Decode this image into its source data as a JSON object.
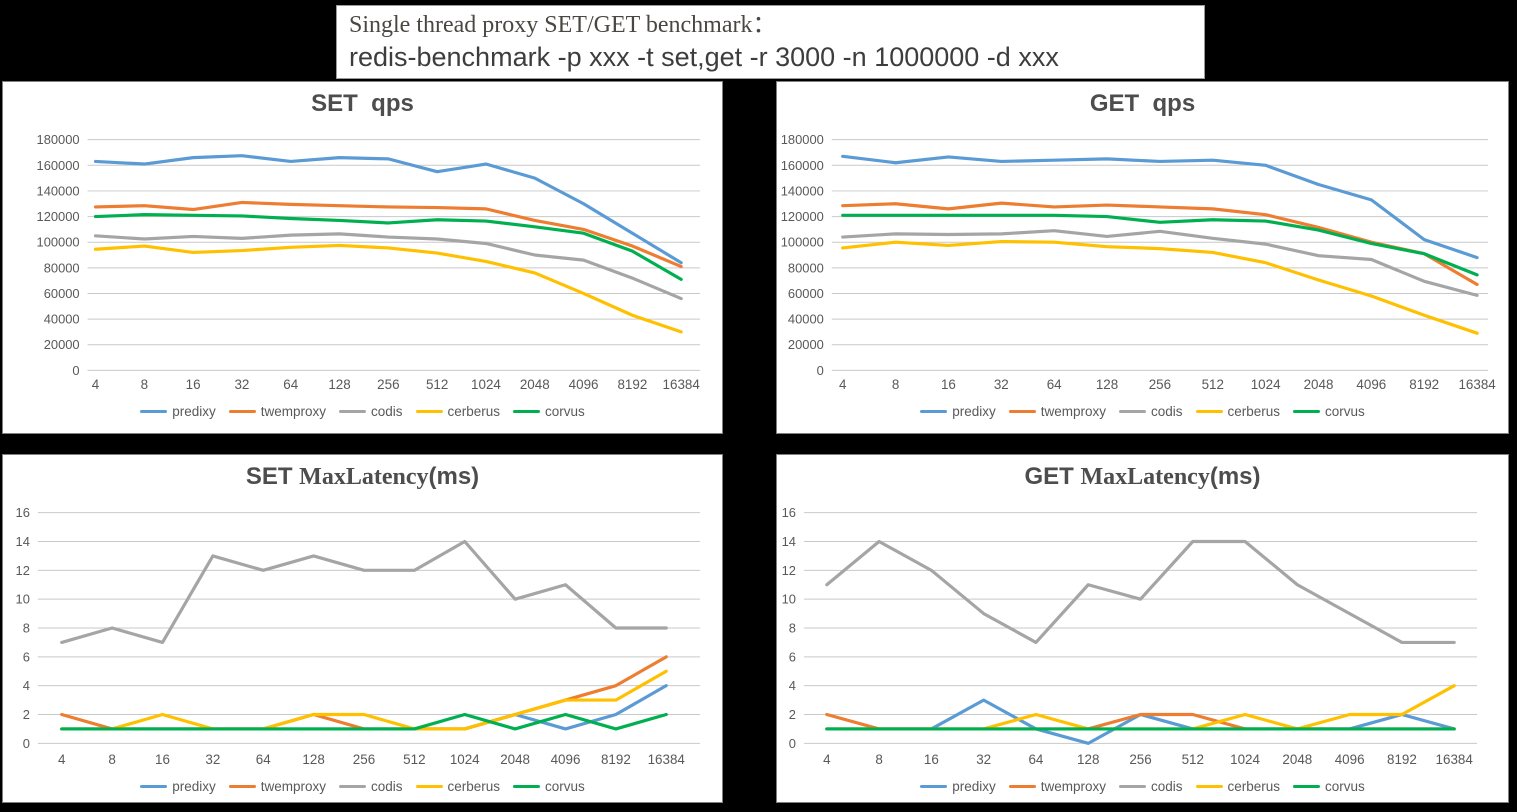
{
  "title_box": {
    "line1": "Single thread proxy SET/GET benchmark：",
    "line2": "redis-benchmark -p xxx -t set,get -r 3000 -n 1000000 -d xxx"
  },
  "colors": {
    "predixy": "#5B9BD5",
    "twemproxy": "#ED7D31",
    "codis": "#A5A5A5",
    "cerberus": "#FFC000",
    "corvus": "#00B050",
    "gridline": "#C9C9C9",
    "tick_text": "#595959"
  },
  "legend_labels": [
    "predixy",
    "twemproxy",
    "codis",
    "cerberus",
    "corvus"
  ],
  "chart_data": [
    {
      "key": "set-qps",
      "type": "line",
      "title_parts": [
        {
          "text": "SET  qps",
          "serif": false
        }
      ],
      "legend_position": "bottom",
      "grid": true,
      "y_axis": {
        "min": 0,
        "max": 180000,
        "step": 20000
      },
      "categories": [
        "4",
        "8",
        "16",
        "32",
        "64",
        "128",
        "256",
        "512",
        "1024",
        "2048",
        "4096",
        "8192",
        "16384"
      ],
      "series": [
        {
          "name": "predixy",
          "values": [
            163000,
            161000,
            166000,
            167500,
            163000,
            166000,
            165000,
            155000,
            161000,
            150000,
            130000,
            107000,
            84000
          ]
        },
        {
          "name": "twemproxy",
          "values": [
            127500,
            128500,
            125500,
            131000,
            129500,
            128500,
            127500,
            127000,
            126000,
            117000,
            110000,
            97000,
            81000
          ]
        },
        {
          "name": "codis",
          "values": [
            105000,
            102500,
            104500,
            103000,
            105500,
            106500,
            104000,
            102500,
            99000,
            90000,
            86000,
            72000,
            56000
          ]
        },
        {
          "name": "cerberus",
          "values": [
            94500,
            97000,
            92000,
            93500,
            96000,
            97500,
            95500,
            91500,
            85000,
            76000,
            60000,
            43000,
            30000
          ]
        },
        {
          "name": "corvus",
          "values": [
            120000,
            121500,
            121000,
            120500,
            118500,
            117000,
            115000,
            117500,
            116500,
            112000,
            107000,
            93000,
            71000
          ]
        }
      ]
    },
    {
      "key": "get-qps",
      "type": "line",
      "title_parts": [
        {
          "text": "GET  qps",
          "serif": false
        }
      ],
      "legend_position": "bottom",
      "grid": true,
      "y_axis": {
        "min": 0,
        "max": 180000,
        "step": 20000
      },
      "categories": [
        "4",
        "8",
        "16",
        "32",
        "64",
        "128",
        "256",
        "512",
        "1024",
        "2048",
        "4096",
        "8192",
        "16384"
      ],
      "series": [
        {
          "name": "predixy",
          "values": [
            167000,
            162000,
            166500,
            163000,
            164000,
            165000,
            163000,
            164000,
            160000,
            145000,
            133000,
            102000,
            88000
          ]
        },
        {
          "name": "twemproxy",
          "values": [
            128500,
            130000,
            126000,
            130500,
            127500,
            129000,
            127500,
            126000,
            121500,
            111500,
            100000,
            91000,
            67000
          ]
        },
        {
          "name": "codis",
          "values": [
            104000,
            106500,
            106000,
            106500,
            109000,
            104500,
            108500,
            103000,
            98500,
            89500,
            86500,
            69500,
            58500
          ]
        },
        {
          "name": "cerberus",
          "values": [
            95500,
            100000,
            97500,
            100500,
            100000,
            96500,
            95000,
            92000,
            84000,
            70500,
            58000,
            43000,
            29000
          ]
        },
        {
          "name": "corvus",
          "values": [
            121000,
            121000,
            121000,
            121000,
            121000,
            120000,
            115500,
            117500,
            116500,
            109500,
            99000,
            91000,
            74500
          ]
        }
      ]
    },
    {
      "key": "set-maxlatency",
      "type": "line",
      "title_parts": [
        {
          "text": "SET ",
          "serif": false
        },
        {
          "text": "MaxLatency",
          "serif": true
        },
        {
          "text": "(ms)",
          "serif": false
        }
      ],
      "legend_position": "bottom",
      "grid": true,
      "y_axis": {
        "min": 0,
        "max": 16,
        "step": 2
      },
      "categories": [
        "4",
        "8",
        "16",
        "32",
        "64",
        "128",
        "256",
        "512",
        "1024",
        "2048",
        "4096",
        "8192",
        "16384"
      ],
      "series": [
        {
          "name": "predixy",
          "values": [
            1,
            1,
            1,
            1,
            1,
            1,
            1,
            1,
            1,
            2,
            1,
            2,
            4
          ]
        },
        {
          "name": "twemproxy",
          "values": [
            2,
            1,
            1,
            1,
            1,
            2,
            1,
            1,
            1,
            2,
            3,
            4,
            6
          ]
        },
        {
          "name": "codis",
          "values": [
            7,
            8,
            7,
            13,
            12,
            13,
            12,
            12,
            14,
            10,
            11,
            8,
            8
          ]
        },
        {
          "name": "cerberus",
          "values": [
            1,
            1,
            2,
            1,
            1,
            2,
            2,
            1,
            1,
            2,
            3,
            3,
            5
          ]
        },
        {
          "name": "corvus",
          "values": [
            1,
            1,
            1,
            1,
            1,
            1,
            1,
            1,
            2,
            1,
            2,
            1,
            2
          ]
        }
      ]
    },
    {
      "key": "get-maxlatency",
      "type": "line",
      "title_parts": [
        {
          "text": "GET ",
          "serif": false
        },
        {
          "text": "MaxLatency",
          "serif": true
        },
        {
          "text": "(ms)",
          "serif": false
        }
      ],
      "legend_position": "bottom",
      "grid": true,
      "y_axis": {
        "min": 0,
        "max": 16,
        "step": 2
      },
      "categories": [
        "4",
        "8",
        "16",
        "32",
        "64",
        "128",
        "256",
        "512",
        "1024",
        "2048",
        "4096",
        "8192",
        "16384"
      ],
      "series": [
        {
          "name": "predixy",
          "values": [
            1,
            1,
            1,
            3,
            1,
            0,
            2,
            1,
            1,
            1,
            1,
            2,
            1
          ]
        },
        {
          "name": "twemproxy",
          "values": [
            2,
            1,
            1,
            1,
            1,
            1,
            2,
            2,
            1,
            1,
            1,
            1,
            1
          ]
        },
        {
          "name": "codis",
          "values": [
            11,
            14,
            12,
            9,
            7,
            11,
            10,
            14,
            14,
            11,
            9,
            7,
            7
          ]
        },
        {
          "name": "cerberus",
          "values": [
            1,
            1,
            1,
            1,
            2,
            1,
            1,
            1,
            2,
            1,
            2,
            2,
            4
          ]
        },
        {
          "name": "corvus",
          "values": [
            1,
            1,
            1,
            1,
            1,
            1,
            1,
            1,
            1,
            1,
            1,
            1,
            1
          ]
        }
      ]
    }
  ]
}
